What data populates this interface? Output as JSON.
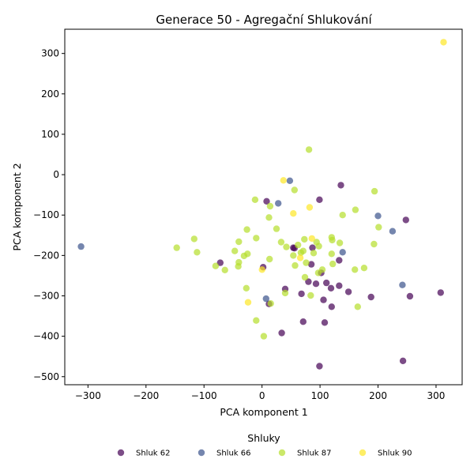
{
  "chart_data": {
    "type": "scatter",
    "title": "Generace 50 - Agregační Shlukování",
    "xlabel": "PCA komponent 1",
    "ylabel": "PCA komponent 2",
    "xlim": [
      -340,
      345
    ],
    "ylim": [
      -520,
      360
    ],
    "xticks": [
      -300,
      -200,
      -100,
      0,
      100,
      200,
      300
    ],
    "yticks": [
      -500,
      -400,
      -300,
      -200,
      -100,
      0,
      100,
      200,
      300
    ],
    "grid": false,
    "legend": {
      "title": "Shluky",
      "placement": "bottom-center",
      "columns": 4
    },
    "series": [
      {
        "name": "Shluk 62",
        "color": "#440154",
        "points": [
          [
            -72,
            -218
          ],
          [
            2,
            -229
          ],
          [
            8,
            -66
          ],
          [
            12,
            -320
          ],
          [
            34,
            -392
          ],
          [
            40,
            -283
          ],
          [
            54,
            -181
          ],
          [
            56,
            -182
          ],
          [
            68,
            -295
          ],
          [
            71,
            -364
          ],
          [
            80,
            -265
          ],
          [
            85,
            -222
          ],
          [
            87,
            -181
          ],
          [
            93,
            -270
          ],
          [
            99,
            -62
          ],
          [
            99,
            -474
          ],
          [
            102,
            -243
          ],
          [
            106,
            -310
          ],
          [
            108,
            -366
          ],
          [
            111,
            -268
          ],
          [
            119,
            -281
          ],
          [
            120,
            -327
          ],
          [
            133,
            -275
          ],
          [
            133,
            -212
          ],
          [
            136,
            -26
          ],
          [
            149,
            -290
          ],
          [
            188,
            -303
          ],
          [
            243,
            -461
          ],
          [
            248,
            -112
          ],
          [
            255,
            -301
          ],
          [
            308,
            -292
          ]
        ]
      },
      {
        "name": "Shluk 66",
        "color": "#3b528b",
        "points": [
          [
            -312,
            -178
          ],
          [
            7,
            -307
          ],
          [
            28,
            -71
          ],
          [
            48,
            -15
          ],
          [
            139,
            -192
          ],
          [
            200,
            -102
          ],
          [
            225,
            -140
          ],
          [
            242,
            -273
          ]
        ]
      },
      {
        "name": "Shluk 87",
        "color": "#b5de2b",
        "points": [
          [
            -147,
            -181
          ],
          [
            -117,
            -159
          ],
          [
            -112,
            -192
          ],
          [
            -80,
            -226
          ],
          [
            -64,
            -236
          ],
          [
            -47,
            -189
          ],
          [
            -41,
            -227
          ],
          [
            -40,
            -166
          ],
          [
            -40,
            -217
          ],
          [
            -31,
            -201
          ],
          [
            -27,
            -281
          ],
          [
            -26,
            -136
          ],
          [
            -25,
            -196
          ],
          [
            -12,
            -62
          ],
          [
            -10,
            -157
          ],
          [
            -10,
            -361
          ],
          [
            3,
            -400
          ],
          [
            12,
            -106
          ],
          [
            13,
            -209
          ],
          [
            14,
            -78
          ],
          [
            15,
            -319
          ],
          [
            25,
            -134
          ],
          [
            33,
            -167
          ],
          [
            40,
            -293
          ],
          [
            42,
            -179
          ],
          [
            54,
            -200
          ],
          [
            56,
            -38
          ],
          [
            57,
            -225
          ],
          [
            62,
            -174
          ],
          [
            67,
            -193
          ],
          [
            71,
            -189
          ],
          [
            73,
            -160
          ],
          [
            74,
            -254
          ],
          [
            76,
            -218
          ],
          [
            81,
            62
          ],
          [
            84,
            -299
          ],
          [
            89,
            -194
          ],
          [
            94,
            -167
          ],
          [
            97,
            -243
          ],
          [
            98,
            -177
          ],
          [
            104,
            -235
          ],
          [
            120,
            -196
          ],
          [
            120,
            -155
          ],
          [
            121,
            -162
          ],
          [
            122,
            -221
          ],
          [
            134,
            -169
          ],
          [
            139,
            -100
          ],
          [
            160,
            -235
          ],
          [
            161,
            -87
          ],
          [
            165,
            -327
          ],
          [
            176,
            -231
          ],
          [
            193,
            -172
          ],
          [
            194,
            -41
          ],
          [
            201,
            -130
          ]
        ]
      },
      {
        "name": "Shluk 90",
        "color": "#fde725",
        "points": [
          [
            -24,
            -316
          ],
          [
            0,
            -235
          ],
          [
            37,
            -14
          ],
          [
            54,
            -96
          ],
          [
            66,
            -206
          ],
          [
            82,
            -81
          ],
          [
            86,
            -158
          ],
          [
            313,
            328
          ]
        ]
      }
    ]
  }
}
